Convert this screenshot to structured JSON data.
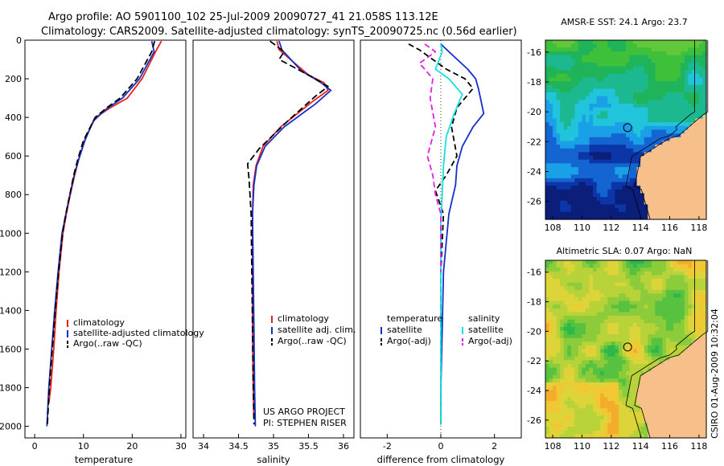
{
  "header": {
    "line1": "Argo profile: AO 5901100_102 25-Jul-2009 20090727_41 21.058S 113.12E",
    "line2": "Climatology: CARS2009. Satellite-adjusted climatology: synTS_20090725.nc (0.56d earlier)"
  },
  "chart_data": [
    {
      "id": "temperature",
      "type": "line",
      "xlabel": "temperature",
      "xlim": [
        -2,
        31
      ],
      "ylim": [
        0,
        2060
      ],
      "yticks": [
        0,
        200,
        400,
        600,
        800,
        1000,
        1200,
        1400,
        1600,
        1800,
        2000
      ],
      "xticks": [
        0,
        10,
        20,
        30
      ],
      "series": [
        {
          "name": "climatology",
          "color": "#e8231a",
          "dash": "",
          "x": [
            26.0,
            25.0,
            22.0,
            19.0,
            15.5,
            12.5,
            10.5,
            9.2,
            8.2,
            7.3,
            6.5,
            5.8,
            5.0,
            4.4,
            3.9,
            3.3,
            2.9
          ],
          "y": [
            5,
            50,
            200,
            300,
            350,
            400,
            500,
            600,
            700,
            800,
            900,
            1000,
            1200,
            1400,
            1600,
            1800,
            1880
          ]
        },
        {
          "name": "satellite-adjusted climatology",
          "color": "#1530c8",
          "dash": "",
          "x": [
            24.0,
            24.5,
            21.5,
            18.0,
            14.5,
            12.0,
            10.3,
            9.0,
            8.1,
            7.2,
            6.4,
            5.6,
            4.8,
            4.1,
            3.5,
            2.9,
            2.5
          ],
          "y": [
            5,
            60,
            200,
            300,
            360,
            420,
            520,
            620,
            700,
            800,
            900,
            1000,
            1200,
            1400,
            1600,
            1800,
            2000
          ]
        },
        {
          "name": "Argo(..raw -QC)",
          "color": "#000000",
          "dash": "8,4",
          "x": [
            24.6,
            24.0,
            21.0,
            17.5,
            14.8,
            12.4,
            10.0,
            8.8,
            8.0,
            7.2,
            6.4,
            5.7,
            4.9,
            4.2,
            3.6,
            3.0,
            2.6
          ],
          "y": [
            5,
            60,
            200,
            300,
            350,
            400,
            520,
            620,
            700,
            800,
            900,
            1000,
            1200,
            1400,
            1600,
            1800,
            1990
          ]
        }
      ]
    },
    {
      "id": "salinity",
      "type": "line",
      "xlabel": "salinity",
      "xlim": [
        33.85,
        36.15
      ],
      "ylim": [
        0,
        2060
      ],
      "xticks": [
        34,
        34.5,
        35,
        35.5,
        36
      ],
      "series": [
        {
          "name": "climatology",
          "color": "#e8231a",
          "dash": "",
          "x": [
            35.05,
            35.08,
            35.5,
            35.72,
            35.78,
            35.55,
            35.1,
            34.85,
            34.75,
            34.71,
            34.7,
            34.7,
            34.7,
            34.71,
            34.72
          ],
          "y": [
            5,
            50,
            180,
            220,
            260,
            320,
            450,
            550,
            650,
            750,
            900,
            1200,
            1500,
            1800,
            1950
          ]
        },
        {
          "name": "satellite adj. clim.",
          "color": "#1530c8",
          "dash": "",
          "x": [
            35.08,
            35.12,
            35.4,
            35.68,
            35.82,
            35.6,
            35.15,
            34.88,
            34.76,
            34.72,
            34.7,
            34.71,
            34.72,
            34.73,
            34.74
          ],
          "y": [
            5,
            50,
            160,
            220,
            260,
            330,
            450,
            550,
            650,
            750,
            900,
            1200,
            1500,
            1800,
            2000
          ]
        },
        {
          "name": "Argo(..raw -QC)",
          "color": "#000000",
          "dash": "8,4",
          "x": [
            34.95,
            35.15,
            35.08,
            35.55,
            35.78,
            35.6,
            35.2,
            34.8,
            34.63,
            34.65,
            34.68,
            34.69,
            34.7,
            34.71,
            34.72
          ],
          "y": [
            5,
            60,
            100,
            190,
            240,
            290,
            420,
            560,
            640,
            720,
            900,
            1200,
            1500,
            1800,
            1990
          ]
        }
      ]
    },
    {
      "id": "difference",
      "type": "line",
      "xlabel": "difference from climatology",
      "xlim": [
        -3,
        3
      ],
      "ylim": [
        0,
        2060
      ],
      "xticks": [
        -2,
        0,
        2
      ],
      "legend_headers": [
        "temperature",
        "salinity"
      ],
      "series": [
        {
          "name": "satellite",
          "group": "temperature",
          "color": "#1530c8",
          "dash": "",
          "x": [
            0.0,
            0.3,
            1.0,
            1.3,
            1.4,
            1.6,
            1.2,
            0.8,
            0.6,
            0.55,
            0.3,
            0.1,
            0.05,
            0.0,
            0.0
          ],
          "y": [
            20,
            60,
            150,
            200,
            250,
            380,
            450,
            550,
            650,
            750,
            900,
            1200,
            1500,
            1800,
            1990
          ]
        },
        {
          "name": "Argo(-adj)",
          "group": "temperature",
          "color": "#000000",
          "dash": "7,4",
          "x": [
            -1.2,
            -0.8,
            0.2,
            0.9,
            1.2,
            0.6,
            0.4,
            0.6,
            0.2,
            -0.2,
            0.1,
            0.0,
            0.0,
            0.0,
            0.0
          ],
          "y": [
            20,
            50,
            150,
            200,
            250,
            350,
            450,
            600,
            700,
            780,
            900,
            1200,
            1500,
            1800,
            1990
          ]
        },
        {
          "name": "satellite",
          "group": "salinity",
          "color": "#17e0e0",
          "dash": "",
          "x": [
            0.0,
            0.05,
            -0.2,
            0.3,
            0.8,
            0.5,
            0.2,
            0.1,
            0.05,
            0.0,
            0.0,
            0.0,
            0.0,
            0.0
          ],
          "y": [
            20,
            60,
            150,
            200,
            280,
            380,
            500,
            650,
            800,
            950,
            1200,
            1500,
            1800,
            1990
          ]
        },
        {
          "name": "Argo(-adj)",
          "group": "salinity",
          "color": "#e020e0",
          "dash": "7,4",
          "x": [
            -0.6,
            -0.2,
            -0.8,
            -0.6,
            -0.3,
            -0.4,
            -0.2,
            -0.5,
            -0.3,
            -0.2,
            0.0,
            0.0,
            0.0
          ],
          "y": [
            20,
            60,
            120,
            150,
            200,
            300,
            450,
            600,
            700,
            800,
            900,
            1100,
            1200
          ]
        }
      ]
    },
    {
      "id": "sst-map",
      "type": "heatmap",
      "title": "AMSR-E SST: 24.1 Argo: 23.7",
      "xticks": [
        108,
        110,
        112,
        114,
        116,
        118
      ],
      "yticks": [
        -16,
        -18,
        -20,
        -22,
        -24,
        -26
      ],
      "xlim": [
        107.5,
        118.5
      ],
      "ylim": [
        -27.2,
        -15.2
      ],
      "marker": {
        "lon": 113.12,
        "lat": -21.058
      }
    },
    {
      "id": "sla-map",
      "type": "heatmap",
      "title": "Altimetric SLA: 0.07 Argo: NaN",
      "xticks": [
        108,
        110,
        112,
        114,
        116,
        118
      ],
      "yticks": [
        -16,
        -18,
        -20,
        -22,
        -24,
        -26
      ],
      "xlim": [
        107.5,
        118.5
      ],
      "ylim": [
        -27.2,
        -15.2
      ],
      "marker": {
        "lon": 113.12,
        "lat": -21.058
      }
    }
  ],
  "legends": {
    "temperature": [
      "climatology",
      "satellite-adjusted climatology",
      "Argo(..raw -QC)"
    ],
    "salinity": [
      "climatology",
      "satellite adj. clim.",
      "Argo(..raw -QC)"
    ],
    "difference_temp": [
      "satellite",
      "Argo(-adj)"
    ],
    "difference_sal": [
      "satellite",
      "Argo(-adj)"
    ]
  },
  "notes": {
    "project_line1": "US ARGO PROJECT",
    "project_line2": "PI: STEPHEN RISER",
    "stamp": "CSIRO 01-Aug-2009 10:32:04"
  },
  "colors": {
    "land": "#f7c08a",
    "marker": "#000000"
  }
}
